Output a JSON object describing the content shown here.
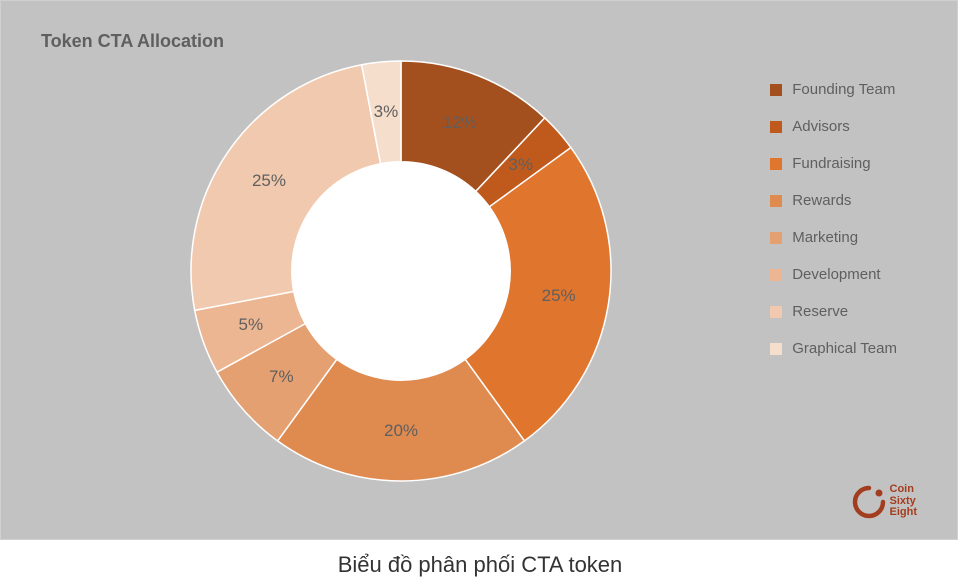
{
  "chart": {
    "title": "Token CTA Allocation",
    "type": "donut",
    "background_color": "#c3c2c2",
    "inner_radius_ratio": 0.52,
    "outer_radius": 210,
    "center_fill": "#ffffff",
    "label_color": "#5f5f5f",
    "label_fontsize": 17,
    "title_color": "#5f5f5f",
    "title_fontsize": 18,
    "start_angle_deg": -90,
    "slice_stroke": "#ffffff",
    "slice_stroke_width": 1.5,
    "slices": [
      {
        "label": "Founding Team",
        "value": 12,
        "color": "#a4501e",
        "pct_label": "12%"
      },
      {
        "label": "Advisors",
        "value": 3,
        "color": "#c05a1c",
        "pct_label": "3%"
      },
      {
        "label": "Fundraising",
        "value": 25,
        "color": "#e0752e",
        "pct_label": "25%"
      },
      {
        "label": "Rewards",
        "value": 20,
        "color": "#df8a4f",
        "pct_label": "20%"
      },
      {
        "label": "Marketing",
        "value": 7,
        "color": "#e5a071",
        "pct_label": "7%"
      },
      {
        "label": "Development",
        "value": 5,
        "color": "#ecb692",
        "pct_label": "5%"
      },
      {
        "label": "Reserve",
        "value": 25,
        "color": "#f1c9ae",
        "pct_label": "25%"
      },
      {
        "label": "Graphical Team",
        "value": 3,
        "color": "#f6decc",
        "pct_label": "3%"
      }
    ]
  },
  "legend": {
    "swatch_size": 12,
    "label_color": "#5f5f5f",
    "label_fontsize": 15,
    "gap": 20
  },
  "caption": {
    "text": "Biểu đồ phân phối CTA token",
    "color": "#333333",
    "fontsize": 22
  },
  "logo": {
    "line1": "Coin",
    "line2": "Sixty",
    "line3": "Eight",
    "color": "#a33d1f"
  }
}
